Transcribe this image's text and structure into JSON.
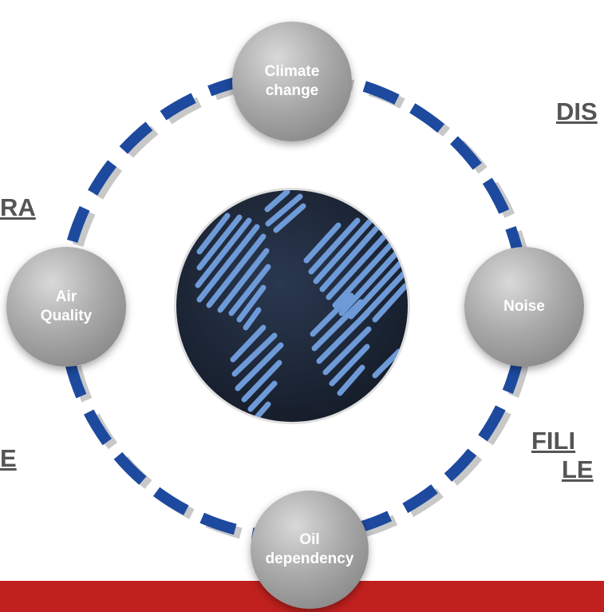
{
  "colors": {
    "ring": "#1d4a9e",
    "ring_shadow": "#c9c9c9",
    "node_text": "#ffffff",
    "globe_bg": "#1f2a3b",
    "globe_land": "#6e9ad8",
    "band": "#c0211e",
    "side_text": "#555555"
  },
  "nodes": {
    "climate": {
      "line1": "Climate",
      "line2": "change"
    },
    "noise": {
      "line1": "Noise"
    },
    "oil": {
      "line1": "Oil",
      "line2": "dependency"
    },
    "air": {
      "line1": "Air",
      "line2": "Quality"
    }
  },
  "side_labels": {
    "top_right": "DIS",
    "left_upper": "RA",
    "left_lower": "E",
    "right_lower_1": "FILI",
    "right_lower_2": "LE"
  },
  "center": {
    "icon": "globe-icon"
  }
}
